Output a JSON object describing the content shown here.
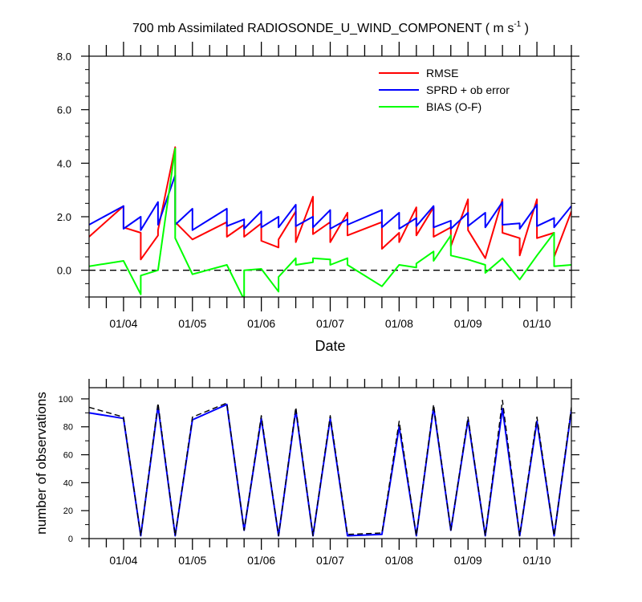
{
  "chart_data": [
    {
      "type": "line",
      "title": "700 mb Assimilated RADIOSONDE_U_WIND_COMPONENT ( m s",
      "title_sup": "-1",
      "title_end": " )",
      "xlabel": "Date",
      "ylabel": "",
      "xlim": [
        0.5,
        7.5
      ],
      "ylim": [
        -1.0,
        8.0
      ],
      "yticks": [
        0,
        2,
        4,
        6,
        8
      ],
      "ytick_labels": [
        "0.0",
        "2.0",
        "4.0",
        "6.0",
        "8.0"
      ],
      "xticks": [
        1,
        2,
        3,
        4,
        5,
        6,
        7
      ],
      "xtick_labels": [
        "01/04",
        "01/05",
        "01/06",
        "01/07",
        "01/08",
        "01/09",
        "01/10"
      ],
      "zero_line": 0,
      "legend_position": "top-right",
      "legend": [
        "RMSE",
        "SPRD + ob error",
        "BIAS (O-F)"
      ],
      "series": [
        {
          "name": "RMSE",
          "color": "#ff0000",
          "points": [
            [
              0.5,
              1.25
            ],
            [
              1.0,
              2.4
            ],
            [
              1.0,
              1.6
            ],
            [
              1.25,
              1.4
            ],
            [
              1.25,
              0.4
            ],
            [
              1.5,
              1.3
            ],
            [
              1.5,
              1.5
            ],
            [
              1.75,
              4.6
            ],
            [
              1.75,
              1.8
            ],
            [
              2.0,
              1.15
            ],
            [
              2.5,
              1.8
            ],
            [
              2.5,
              1.25
            ],
            [
              2.75,
              1.7
            ],
            [
              2.75,
              1.25
            ],
            [
              3.0,
              1.75
            ],
            [
              3.0,
              1.1
            ],
            [
              3.25,
              0.85
            ],
            [
              3.25,
              1.15
            ],
            [
              3.5,
              2.2
            ],
            [
              3.5,
              1.05
            ],
            [
              3.75,
              2.75
            ],
            [
              3.75,
              1.35
            ],
            [
              4.0,
              1.8
            ],
            [
              4.0,
              1.05
            ],
            [
              4.25,
              2.15
            ],
            [
              4.25,
              1.3
            ],
            [
              4.75,
              1.8
            ],
            [
              4.75,
              0.8
            ],
            [
              5.0,
              1.4
            ],
            [
              5.0,
              1.05
            ],
            [
              5.25,
              2.35
            ],
            [
              5.25,
              1.3
            ],
            [
              5.5,
              2.35
            ],
            [
              5.5,
              1.25
            ],
            [
              5.75,
              1.6
            ],
            [
              5.75,
              0.9
            ],
            [
              6.0,
              2.65
            ],
            [
              6.0,
              1.5
            ],
            [
              6.25,
              0.45
            ],
            [
              6.5,
              2.65
            ],
            [
              6.5,
              1.4
            ],
            [
              6.75,
              1.2
            ],
            [
              6.75,
              0.55
            ],
            [
              7.0,
              2.65
            ],
            [
              7.0,
              1.2
            ],
            [
              7.25,
              1.4
            ],
            [
              7.25,
              0.5
            ],
            [
              7.5,
              2.2
            ]
          ]
        },
        {
          "name": "SPRD + ob error",
          "color": "#0000ff",
          "points": [
            [
              0.5,
              1.7
            ],
            [
              1.0,
              2.4
            ],
            [
              1.0,
              1.55
            ],
            [
              1.25,
              2.0
            ],
            [
              1.25,
              1.5
            ],
            [
              1.5,
              2.55
            ],
            [
              1.5,
              1.7
            ],
            [
              1.75,
              3.55
            ],
            [
              1.75,
              1.7
            ],
            [
              2.0,
              2.3
            ],
            [
              2.0,
              1.5
            ],
            [
              2.5,
              2.3
            ],
            [
              2.5,
              1.65
            ],
            [
              2.75,
              1.9
            ],
            [
              2.75,
              1.55
            ],
            [
              3.0,
              2.2
            ],
            [
              3.0,
              1.6
            ],
            [
              3.25,
              2.0
            ],
            [
              3.25,
              1.6
            ],
            [
              3.5,
              2.45
            ],
            [
              3.5,
              1.65
            ],
            [
              3.75,
              2.0
            ],
            [
              3.75,
              1.6
            ],
            [
              4.0,
              2.25
            ],
            [
              4.0,
              1.55
            ],
            [
              4.25,
              1.9
            ],
            [
              4.25,
              1.7
            ],
            [
              4.75,
              2.25
            ],
            [
              4.75,
              1.6
            ],
            [
              5.0,
              2.15
            ],
            [
              5.0,
              1.55
            ],
            [
              5.25,
              1.95
            ],
            [
              5.25,
              1.65
            ],
            [
              5.5,
              2.4
            ],
            [
              5.5,
              1.6
            ],
            [
              5.75,
              1.85
            ],
            [
              5.75,
              1.55
            ],
            [
              6.0,
              2.15
            ],
            [
              6.0,
              1.65
            ],
            [
              6.25,
              2.15
            ],
            [
              6.25,
              1.6
            ],
            [
              6.5,
              2.55
            ],
            [
              6.5,
              1.7
            ],
            [
              6.75,
              1.75
            ],
            [
              6.75,
              1.55
            ],
            [
              7.0,
              2.45
            ],
            [
              7.0,
              1.65
            ],
            [
              7.25,
              1.95
            ],
            [
              7.25,
              1.6
            ],
            [
              7.5,
              2.4
            ]
          ]
        },
        {
          "name": "BIAS (O-F)",
          "color": "#00ff00",
          "points": [
            [
              0.5,
              0.15
            ],
            [
              1.0,
              0.35
            ],
            [
              1.25,
              -0.9
            ],
            [
              1.25,
              -0.2
            ],
            [
              1.5,
              0.0
            ],
            [
              1.75,
              4.55
            ],
            [
              1.75,
              1.2
            ],
            [
              2.0,
              -0.15
            ],
            [
              2.5,
              0.2
            ],
            [
              2.75,
              -1.1
            ],
            [
              2.75,
              0.0
            ],
            [
              3.0,
              0.05
            ],
            [
              3.25,
              -0.8
            ],
            [
              3.25,
              -0.25
            ],
            [
              3.5,
              0.45
            ],
            [
              3.5,
              0.2
            ],
            [
              3.75,
              0.3
            ],
            [
              3.75,
              0.45
            ],
            [
              4.0,
              0.4
            ],
            [
              4.0,
              0.2
            ],
            [
              4.25,
              0.45
            ],
            [
              4.25,
              0.2
            ],
            [
              4.75,
              -0.6
            ],
            [
              5.0,
              0.2
            ],
            [
              5.25,
              0.1
            ],
            [
              5.25,
              0.25
            ],
            [
              5.5,
              0.7
            ],
            [
              5.5,
              0.35
            ],
            [
              5.75,
              1.3
            ],
            [
              5.75,
              0.55
            ],
            [
              6.0,
              0.4
            ],
            [
              6.25,
              0.2
            ],
            [
              6.25,
              -0.1
            ],
            [
              6.5,
              0.45
            ],
            [
              6.75,
              -0.35
            ],
            [
              7.0,
              0.55
            ],
            [
              7.25,
              1.4
            ],
            [
              7.25,
              0.15
            ],
            [
              7.5,
              0.2
            ]
          ]
        }
      ]
    },
    {
      "type": "line",
      "title": "",
      "xlabel": "",
      "ylabel": "number of observations",
      "xlim": [
        0.5,
        7.5
      ],
      "ylim": [
        0,
        108
      ],
      "yticks": [
        0,
        20,
        40,
        60,
        80,
        100
      ],
      "ytick_labels": [
        "0",
        "20",
        "40",
        "60",
        "80",
        "100"
      ],
      "xticks": [
        1,
        2,
        3,
        4,
        5,
        6,
        7
      ],
      "xtick_labels": [
        "01/04",
        "01/05",
        "01/06",
        "01/07",
        "01/08",
        "01/09",
        "01/10"
      ],
      "series": [
        {
          "name": "observations (dashed)",
          "color": "#000000",
          "dashed": true,
          "points": [
            [
              0.5,
              94
            ],
            [
              1.0,
              87
            ],
            [
              1.25,
              2
            ],
            [
              1.5,
              97
            ],
            [
              1.75,
              2
            ],
            [
              2.0,
              87
            ],
            [
              2.5,
              97
            ],
            [
              2.75,
              6
            ],
            [
              3.0,
              88
            ],
            [
              3.25,
              2
            ],
            [
              3.5,
              94
            ],
            [
              3.75,
              2
            ],
            [
              4.0,
              88
            ],
            [
              4.25,
              3
            ],
            [
              4.75,
              4
            ],
            [
              5.0,
              84
            ],
            [
              5.25,
              2
            ],
            [
              5.5,
              96
            ],
            [
              5.75,
              6
            ],
            [
              6.0,
              87
            ],
            [
              6.25,
              2
            ],
            [
              6.5,
              99
            ],
            [
              6.75,
              2
            ],
            [
              7.0,
              87
            ],
            [
              7.25,
              2
            ],
            [
              7.5,
              94
            ]
          ]
        },
        {
          "name": "observations (solid)",
          "color": "#0000ff",
          "dashed": false,
          "points": [
            [
              0.5,
              90
            ],
            [
              1.0,
              86
            ],
            [
              1.25,
              2
            ],
            [
              1.5,
              95
            ],
            [
              1.75,
              2
            ],
            [
              2.0,
              85
            ],
            [
              2.5,
              96
            ],
            [
              2.75,
              6
            ],
            [
              3.0,
              86
            ],
            [
              3.25,
              2
            ],
            [
              3.5,
              92
            ],
            [
              3.75,
              2
            ],
            [
              4.0,
              86
            ],
            [
              4.25,
              2
            ],
            [
              4.75,
              3
            ],
            [
              5.0,
              80
            ],
            [
              5.25,
              2
            ],
            [
              5.5,
              94
            ],
            [
              5.75,
              6
            ],
            [
              6.0,
              85
            ],
            [
              6.25,
              2
            ],
            [
              6.5,
              93
            ],
            [
              6.75,
              2
            ],
            [
              7.0,
              84
            ],
            [
              7.25,
              2
            ],
            [
              7.5,
              92
            ]
          ]
        }
      ]
    }
  ]
}
